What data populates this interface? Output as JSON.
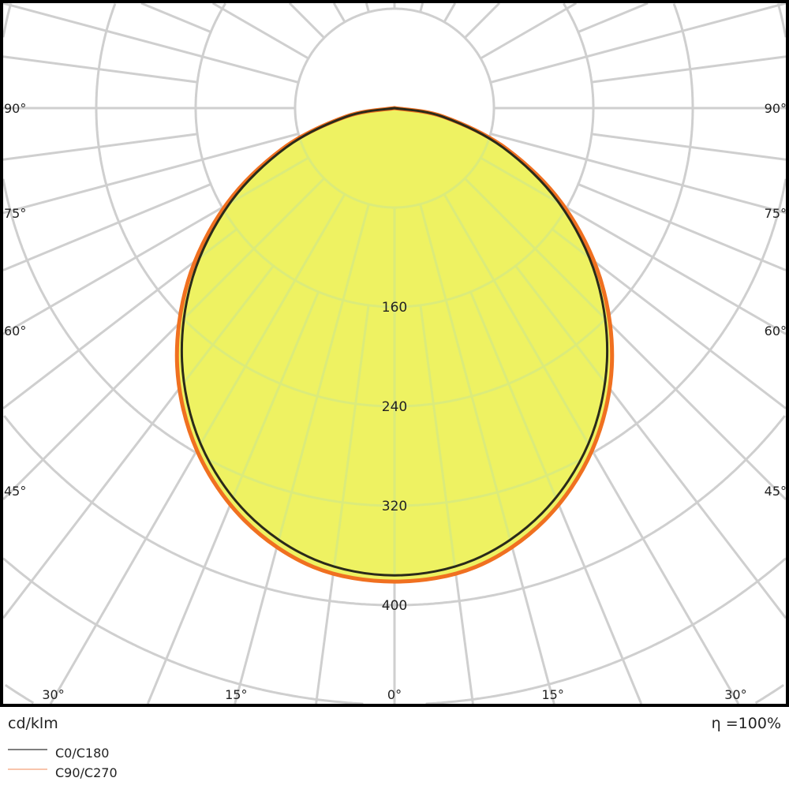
{
  "chart_data": {
    "type": "polar",
    "unit_label": "cd/klm",
    "efficiency_label": "η =100%",
    "radial_ticks": [
      80,
      160,
      240,
      320,
      400
    ],
    "radial_tick_labels_shown": [
      "160",
      "240",
      "320",
      "400"
    ],
    "angle_labels_sides": [
      {
        "angle": 90,
        "label": "90°"
      },
      {
        "angle": 75,
        "label": "75°"
      },
      {
        "angle": 60,
        "label": "60°"
      },
      {
        "angle": 45,
        "label": "45°"
      }
    ],
    "angle_labels_bottom": [
      {
        "angle": -30,
        "label": "30°"
      },
      {
        "angle": -15,
        "label": "15°"
      },
      {
        "angle": 0,
        "label": "0°"
      },
      {
        "angle": 15,
        "label": "15°"
      },
      {
        "angle": 30,
        "label": "30°"
      }
    ],
    "gamma_angles": [
      0,
      10,
      20,
      30,
      40,
      50,
      60,
      70,
      80,
      90
    ],
    "series": [
      {
        "name": "C0/C180",
        "color": "#2a2a1a",
        "legend_color": "#555555",
        "values": [
          376,
          369,
          347,
          312,
          266,
          212,
          153,
          93,
          39,
          0
        ]
      },
      {
        "name": "C90/C270",
        "color": "#f07020",
        "legend_color": "#f5b090",
        "values": [
          381,
          375,
          353,
          318,
          272,
          217,
          157,
          96,
          40,
          0
        ]
      }
    ],
    "fill_color": "#eef262",
    "grid": true
  }
}
